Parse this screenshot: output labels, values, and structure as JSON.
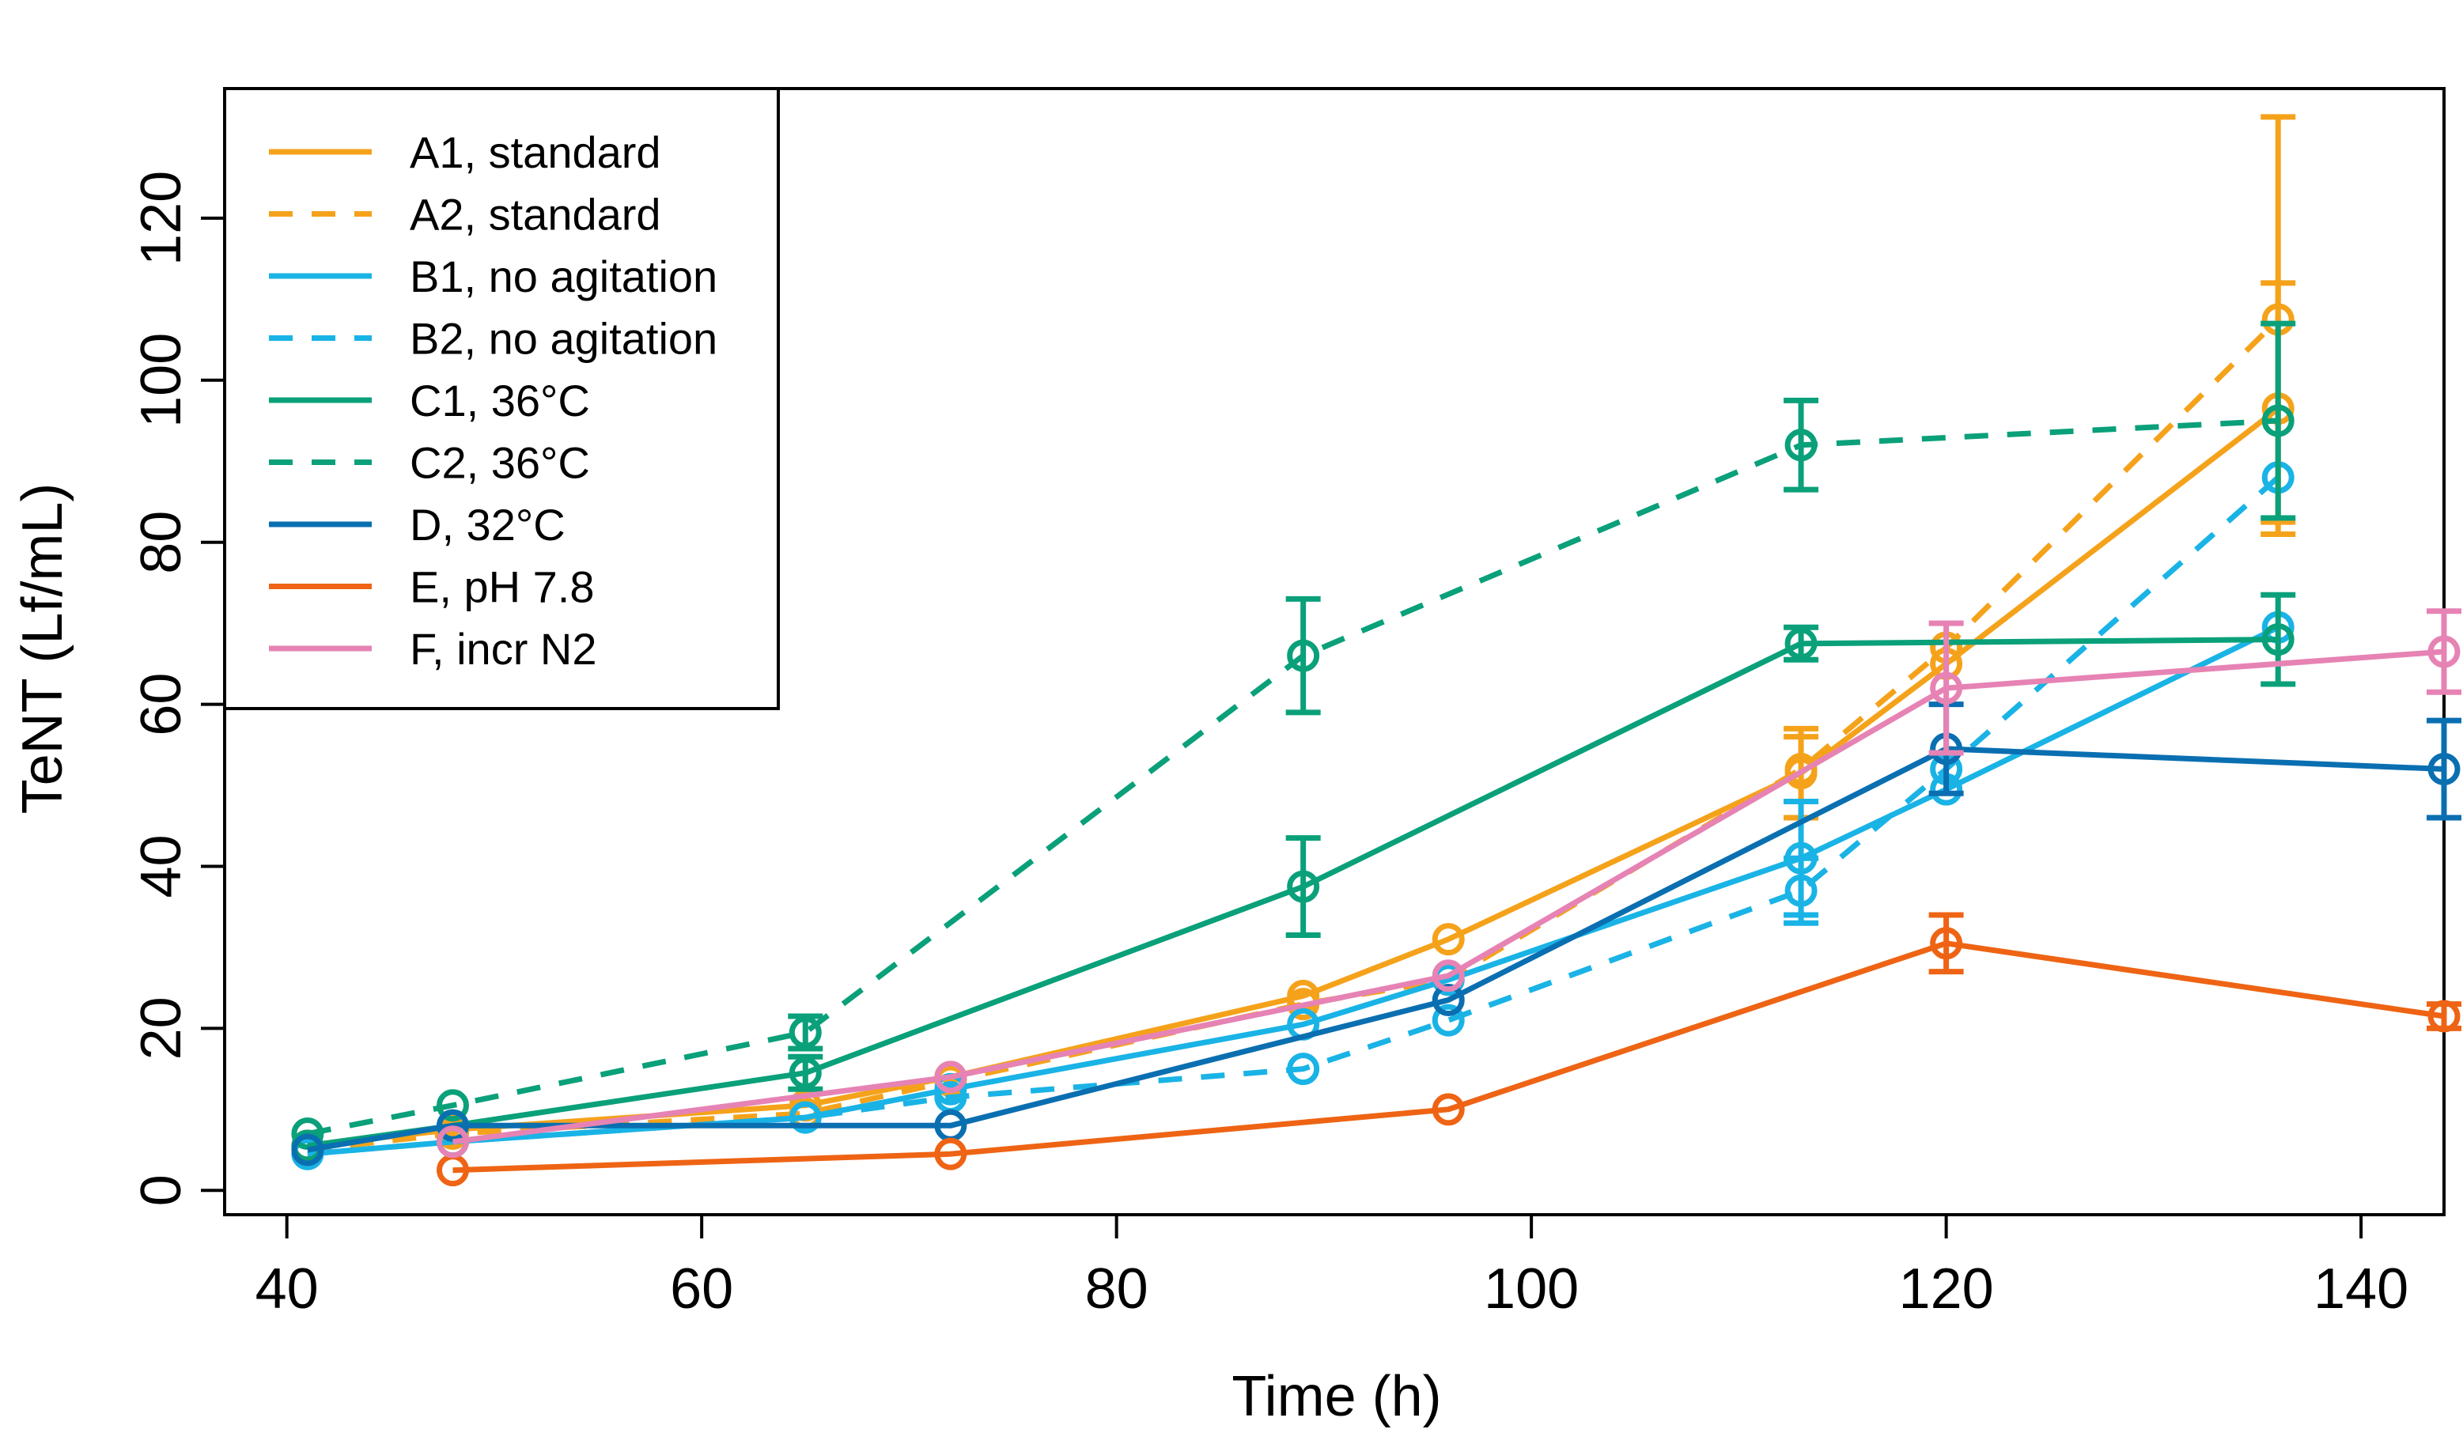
{
  "chart_data": {
    "type": "line",
    "title": "",
    "xlabel": "Time (h)",
    "ylabel": "TeNT (Lf/mL)",
    "xlim": [
      37,
      144
    ],
    "ylim": [
      -3,
      136
    ],
    "xticks": [
      40,
      60,
      80,
      100,
      120,
      140
    ],
    "yticks": [
      0,
      20,
      40,
      60,
      80,
      100,
      120
    ],
    "legend_position": "top-left",
    "grid": false,
    "series": [
      {
        "name": "A1, standard",
        "color": "#F5A21B",
        "dash": "solid",
        "points": [
          {
            "x": 41,
            "y": 5.5
          },
          {
            "x": 48,
            "y": 7.5
          },
          {
            "x": 65,
            "y": 10.5
          },
          {
            "x": 72,
            "y": 14
          },
          {
            "x": 89,
            "y": 24
          },
          {
            "x": 96,
            "y": 31
          },
          {
            "x": 113,
            "y": 51.5,
            "err": 5.5
          },
          {
            "x": 120,
            "y": 65
          },
          {
            "x": 136,
            "y": 96.5,
            "err": 15.5
          }
        ]
      },
      {
        "name": "A2, standard",
        "color": "#F5A21B",
        "dash": "dashed",
        "points": [
          {
            "x": 41,
            "y": 5
          },
          {
            "x": 48,
            "y": 7
          },
          {
            "x": 65,
            "y": 9.5
          },
          {
            "x": 72,
            "y": 13.5
          },
          {
            "x": 89,
            "y": 23
          },
          {
            "x": 96,
            "y": 26
          },
          {
            "x": 113,
            "y": 52,
            "err": 4
          },
          {
            "x": 120,
            "y": 67
          },
          {
            "x": 136,
            "y": 107.5,
            "err": 25
          }
        ]
      },
      {
        "name": "B1, no agitation",
        "color": "#1AB3E6",
        "dash": "solid",
        "points": [
          {
            "x": 41,
            "y": 4.5
          },
          {
            "x": 48,
            "y": 6
          },
          {
            "x": 65,
            "y": 9
          },
          {
            "x": 72,
            "y": 12.5
          },
          {
            "x": 89,
            "y": 20.5
          },
          {
            "x": 96,
            "y": 26
          },
          {
            "x": 113,
            "y": 41,
            "err": 7
          },
          {
            "x": 120,
            "y": 49.5
          },
          {
            "x": 136,
            "y": 69.5
          }
        ]
      },
      {
        "name": "B2, no agitation",
        "color": "#1AB3E6",
        "dash": "dashed",
        "points": [
          {
            "x": 41,
            "y": 4.5
          },
          {
            "x": 48,
            "y": 6
          },
          {
            "x": 65,
            "y": 9
          },
          {
            "x": 72,
            "y": 11.5
          },
          {
            "x": 89,
            "y": 15
          },
          {
            "x": 96,
            "y": 21
          },
          {
            "x": 113,
            "y": 37,
            "err": 4
          },
          {
            "x": 120,
            "y": 52
          },
          {
            "x": 136,
            "y": 88
          }
        ]
      },
      {
        "name": "C1, 36°C",
        "color": "#0AA07A",
        "dash": "solid",
        "points": [
          {
            "x": 41,
            "y": 5.5
          },
          {
            "x": 48,
            "y": 8
          },
          {
            "x": 65,
            "y": 14.5,
            "err": 2
          },
          {
            "x": 89,
            "y": 37.5,
            "err": 6
          },
          {
            "x": 113,
            "y": 67.5,
            "err": 2
          },
          {
            "x": 136,
            "y": 68,
            "err": 5.5
          }
        ]
      },
      {
        "name": "C2, 36°C",
        "color": "#0AA07A",
        "dash": "dashed",
        "points": [
          {
            "x": 41,
            "y": 7
          },
          {
            "x": 48,
            "y": 10.5
          },
          {
            "x": 65,
            "y": 19.5,
            "err": 2
          },
          {
            "x": 89,
            "y": 66,
            "err": 7
          },
          {
            "x": 113,
            "y": 92,
            "err": 5.5
          },
          {
            "x": 136,
            "y": 95,
            "err": 12
          }
        ]
      },
      {
        "name": "D, 32°C",
        "color": "#0A6FB1",
        "dash": "solid",
        "points": [
          {
            "x": 41,
            "y": 5
          },
          {
            "x": 48,
            "y": 8
          },
          {
            "x": 72,
            "y": 8
          },
          {
            "x": 96,
            "y": 23.5
          },
          {
            "x": 120,
            "y": 54.5,
            "err": 5.5
          },
          {
            "x": 144,
            "y": 52,
            "err": 6
          }
        ]
      },
      {
        "name": "E, pH 7.8",
        "color": "#EE6414",
        "dash": "solid",
        "points": [
          {
            "x": 48,
            "y": 2.5
          },
          {
            "x": 72,
            "y": 4.5
          },
          {
            "x": 96,
            "y": 10
          },
          {
            "x": 120,
            "y": 30.5,
            "err": 3.5
          },
          {
            "x": 144,
            "y": 21.5,
            "err": 1.5
          }
        ]
      },
      {
        "name": "F, incr N2",
        "color": "#E683B4",
        "dash": "solid",
        "points": [
          {
            "x": 48,
            "y": 6
          },
          {
            "x": 72,
            "y": 14
          },
          {
            "x": 96,
            "y": 26.5
          },
          {
            "x": 120,
            "y": 62,
            "err": 8
          },
          {
            "x": 144,
            "y": 66.5,
            "err": 5
          }
        ]
      }
    ]
  }
}
